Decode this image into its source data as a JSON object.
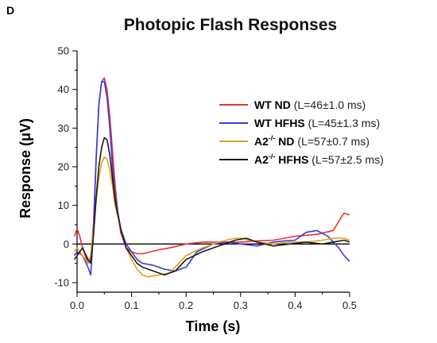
{
  "panel_label": "D",
  "chart_data": {
    "type": "line",
    "title": "Photopic Flash Responses",
    "xlabel": "Time (s)",
    "ylabel": "Response (μV)",
    "xlim": [
      0,
      0.5
    ],
    "ylim": [
      -10,
      50
    ],
    "xticks": [
      "0.0",
      "0.1",
      "0.2",
      "0.3",
      "0.4",
      "0.5"
    ],
    "xtick_values": [
      0,
      0.1,
      0.2,
      0.3,
      0.4,
      0.5
    ],
    "yticks": [
      "-10",
      "0",
      "10",
      "20",
      "30",
      "40",
      "50"
    ],
    "ytick_values": [
      -10,
      0,
      10,
      20,
      30,
      40,
      50
    ],
    "zero_line": true,
    "grid": false,
    "legend_position": "right",
    "series": [
      {
        "name": "WT ND",
        "name_base": "WT",
        "name_suffix": "ND",
        "sup": "",
        "latency": "(L=46±1.0 ms)",
        "color": "#e8312f",
        "x": [
          -0.005,
          0.0,
          0.005,
          0.01,
          0.015,
          0.02,
          0.025,
          0.03,
          0.035,
          0.04,
          0.045,
          0.05,
          0.055,
          0.06,
          0.065,
          0.07,
          0.075,
          0.08,
          0.09,
          0.1,
          0.11,
          0.12,
          0.13,
          0.15,
          0.17,
          0.2,
          0.23,
          0.26,
          0.3,
          0.33,
          0.36,
          0.4,
          0.44,
          0.47,
          0.485,
          0.49,
          0.5
        ],
        "y": [
          2,
          4,
          2,
          -1,
          -3,
          -5,
          -4,
          5,
          22,
          36,
          42,
          43,
          40,
          33,
          24,
          15,
          8,
          3,
          -1,
          -2,
          -2.5,
          -2.5,
          -2.2,
          -1.5,
          -1,
          0,
          0.5,
          0.5,
          0.5,
          0.8,
          1,
          2,
          2.5,
          3.5,
          7,
          8,
          7.5
        ]
      },
      {
        "name": "WT HFHS",
        "name_base": "WT",
        "name_suffix": "HFHS",
        "sup": "",
        "latency": "(L=45±1.3 ms)",
        "color": "#3b3bdb",
        "x": [
          -0.005,
          0.0,
          0.01,
          0.02,
          0.025,
          0.03,
          0.035,
          0.04,
          0.045,
          0.05,
          0.055,
          0.06,
          0.065,
          0.07,
          0.08,
          0.09,
          0.1,
          0.11,
          0.12,
          0.14,
          0.16,
          0.18,
          0.2,
          0.22,
          0.25,
          0.28,
          0.3,
          0.33,
          0.36,
          0.38,
          0.4,
          0.42,
          0.44,
          0.46,
          0.48,
          0.49,
          0.5
        ],
        "y": [
          -3,
          -2,
          -3,
          -6,
          -8,
          3,
          22,
          36,
          42,
          42,
          38,
          30,
          20,
          12,
          4,
          0,
          -2,
          -4,
          -5,
          -5.5,
          -6.5,
          -7,
          -6,
          -2,
          0,
          0.5,
          0,
          -0.5,
          0.5,
          0.8,
          1,
          3,
          3.5,
          2,
          -1,
          -3,
          -4.5
        ]
      },
      {
        "name": "A2-/- ND",
        "name_base": "A2",
        "name_suffix": "ND",
        "sup": "-/-",
        "latency": "(L=57±0.7 ms)",
        "color": "#e0a020",
        "x": [
          -0.005,
          0.0,
          0.01,
          0.02,
          0.025,
          0.03,
          0.035,
          0.04,
          0.045,
          0.05,
          0.055,
          0.06,
          0.065,
          0.07,
          0.08,
          0.09,
          0.1,
          0.11,
          0.12,
          0.13,
          0.15,
          0.17,
          0.2,
          0.23,
          0.26,
          0.29,
          0.3,
          0.33,
          0.36,
          0.39,
          0.42,
          0.45,
          0.47,
          0.49,
          0.5
        ],
        "y": [
          -2,
          -1,
          -3,
          -5,
          -3,
          3,
          11,
          17,
          21,
          22.5,
          22,
          19,
          15,
          10,
          4,
          -1,
          -4,
          -6.5,
          -8,
          -8.5,
          -8,
          -7.5,
          -3,
          -1,
          0.5,
          1.5,
          1.5,
          0.5,
          0,
          0.5,
          0.5,
          1,
          1.5,
          1.5,
          1
        ]
      },
      {
        "name": "A2-/- HFHS",
        "name_base": "A2",
        "name_suffix": "HFHS",
        "sup": "-/-",
        "latency": "(L=57±2.5 ms)",
        "color": "#1a1a1a",
        "x": [
          -0.005,
          0.0,
          0.01,
          0.02,
          0.025,
          0.03,
          0.035,
          0.04,
          0.045,
          0.05,
          0.055,
          0.06,
          0.065,
          0.07,
          0.08,
          0.09,
          0.1,
          0.11,
          0.12,
          0.14,
          0.16,
          0.18,
          0.2,
          0.23,
          0.26,
          0.29,
          0.31,
          0.33,
          0.36,
          0.39,
          0.42,
          0.45,
          0.47,
          0.49,
          0.5
        ],
        "y": [
          -4,
          -3,
          -1,
          -4,
          -5,
          2,
          12,
          20,
          25,
          27.5,
          27,
          23,
          17,
          11,
          4,
          -1,
          -3,
          -5,
          -6,
          -7,
          -8,
          -7,
          -4,
          -2,
          -0.5,
          1,
          1.5,
          0.5,
          -0.5,
          0,
          0.5,
          0,
          0.5,
          1,
          0.5
        ]
      }
    ]
  }
}
